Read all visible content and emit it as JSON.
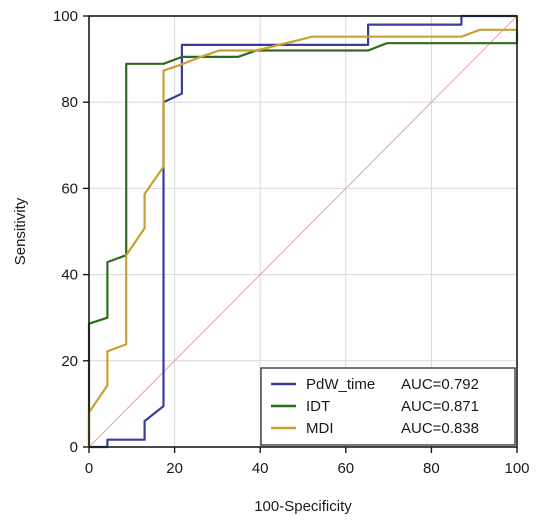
{
  "chart_data": {
    "type": "line",
    "title": "",
    "xlabel": "100-Specificity",
    "ylabel": "Sensitivity",
    "xlim": [
      0,
      100
    ],
    "ylim": [
      0,
      100
    ],
    "xticks": [
      0,
      20,
      40,
      60,
      80,
      100
    ],
    "yticks": [
      0,
      20,
      40,
      60,
      80,
      100
    ],
    "grid": true,
    "legend_position": "bottom-right",
    "reference_line": {
      "x": [
        0,
        100
      ],
      "y": [
        0,
        100
      ],
      "color": "#e8a0a0"
    },
    "series": [
      {
        "name": "PdW_time",
        "auc_label": "AUC=0.792",
        "color": "#3b3b9c",
        "x": [
          0,
          0,
          4.3,
          4.3,
          4.3,
          13,
          13,
          17.4,
          17.4,
          17.4,
          21.7,
          21.7,
          65.2,
          65.2,
          87,
          87,
          100
        ],
        "y": [
          0,
          0,
          0,
          0,
          1.7,
          1.7,
          6,
          9.5,
          9.5,
          80,
          82,
          93.3,
          93.3,
          98,
          98,
          100,
          100
        ]
      },
      {
        "name": "IDT",
        "auc_label": "AUC=0.871",
        "color": "#2e6b1e",
        "x": [
          0,
          0,
          4.3,
          4.3,
          8.7,
          8.7,
          17.4,
          21.7,
          34.8,
          39.1,
          65.2,
          69.6,
          82.6,
          100,
          100
        ],
        "y": [
          0,
          28.6,
          30,
          42.9,
          44.5,
          88.9,
          88.9,
          90.5,
          90.5,
          92,
          92,
          93.7,
          93.7,
          93.7,
          96.8
        ]
      },
      {
        "name": "MDI",
        "auc_label": "AUC=0.838",
        "color": "#c8a033",
        "x": [
          0,
          0,
          4.3,
          4.3,
          8.7,
          8.7,
          13,
          13,
          17.4,
          17.4,
          17.4,
          21.7,
          26.1,
          30.4,
          39.1,
          52.2,
          87,
          91.3,
          100,
          100
        ],
        "y": [
          0,
          8,
          14.3,
          22.2,
          23.8,
          44.5,
          50.8,
          58.7,
          65,
          81,
          87.3,
          88.8,
          90.5,
          92,
          92,
          95.2,
          95.2,
          96.8,
          96.8,
          100
        ]
      }
    ]
  }
}
